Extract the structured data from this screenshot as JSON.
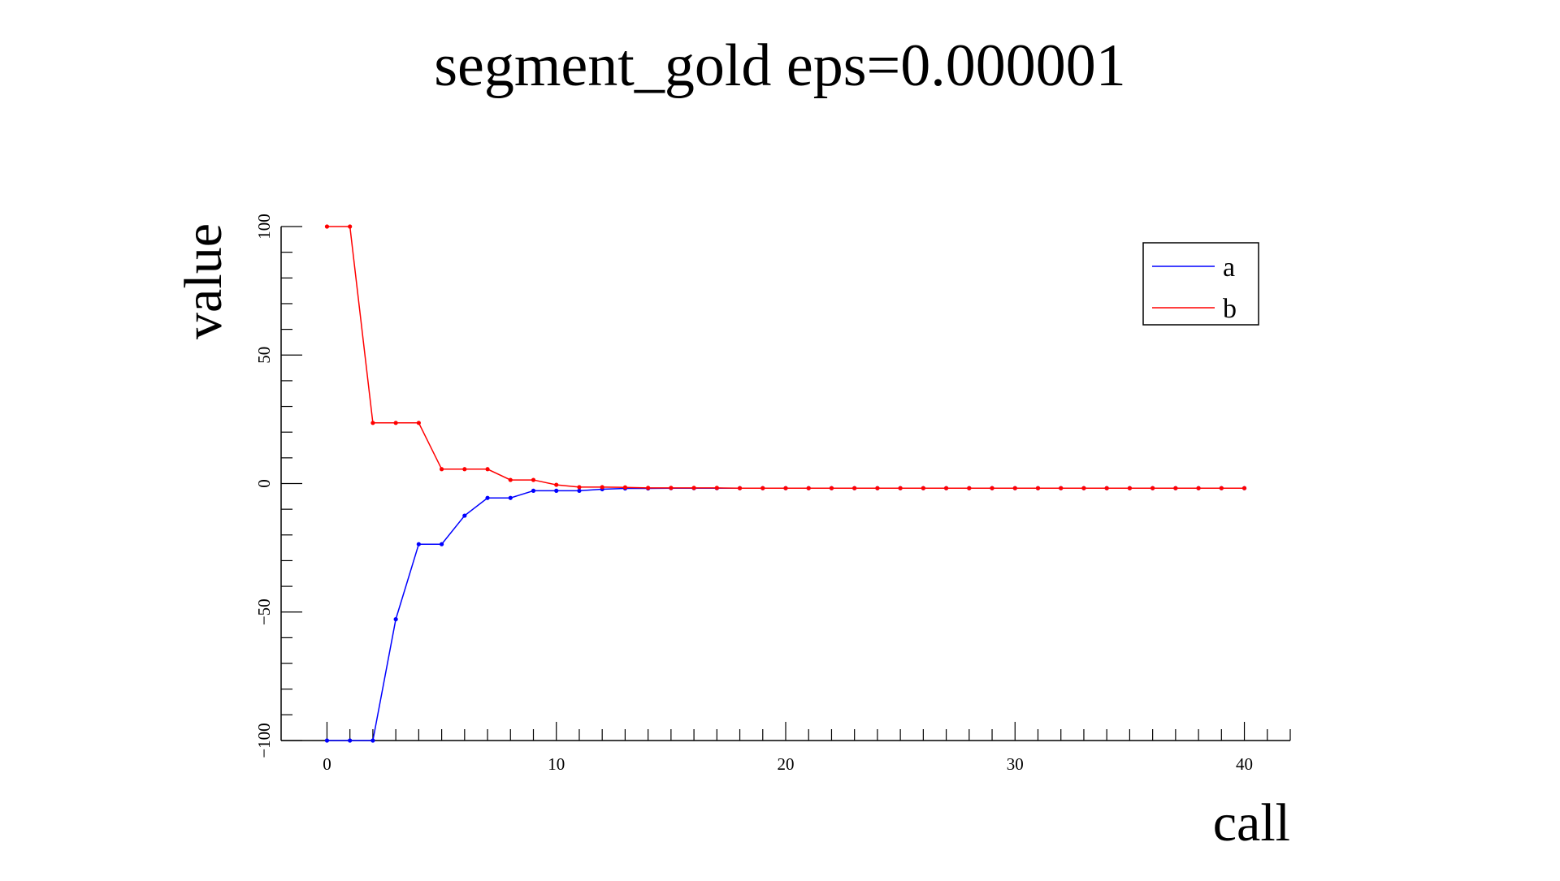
{
  "chart_data": {
    "type": "line",
    "title": "segment_gold eps=0.000001",
    "xlabel": "call",
    "ylabel": "value",
    "xlim": [
      -2,
      42
    ],
    "ylim": [
      -100,
      100
    ],
    "grid": false,
    "legend": {
      "position": "top-right",
      "entries": [
        "a",
        "b"
      ]
    },
    "x_ticks": [
      "0",
      "10",
      "20",
      "30",
      "40"
    ],
    "y_ticks": [
      "−100",
      "−50",
      "0",
      "50",
      "100"
    ],
    "y_tick_values": [
      -100,
      -50,
      0,
      50,
      100
    ],
    "x": [
      0,
      1,
      2,
      3,
      4,
      5,
      6,
      7,
      8,
      9,
      10,
      11,
      12,
      13,
      14,
      15,
      16,
      17,
      18,
      19,
      20,
      21,
      22,
      23,
      24,
      25,
      26,
      27,
      28,
      29,
      30,
      31,
      32,
      33,
      34,
      35,
      36,
      37,
      38,
      39,
      40
    ],
    "series": [
      {
        "name": "a",
        "color": "#0000ff",
        "values": [
          -100,
          -100,
          -100,
          -52.8,
          -23.6,
          -23.6,
          -12.5,
          -5.6,
          -5.6,
          -2.8,
          -2.8,
          -2.8,
          -2.2,
          -1.9,
          -1.9,
          -1.8,
          -1.8,
          -1.8,
          -1.8,
          -1.8,
          -1.8,
          -1.8,
          -1.8,
          -1.8,
          -1.8,
          -1.8,
          -1.8,
          -1.8,
          -1.8,
          -1.8,
          -1.8,
          -1.8,
          -1.8,
          -1.8,
          -1.8,
          -1.8,
          -1.8,
          -1.8,
          -1.8,
          -1.8,
          -1.8
        ]
      },
      {
        "name": "b",
        "color": "#ff0000",
        "values": [
          100,
          100,
          23.6,
          23.6,
          23.6,
          5.6,
          5.6,
          5.6,
          1.4,
          1.4,
          -0.5,
          -1.4,
          -1.4,
          -1.5,
          -1.7,
          -1.7,
          -1.7,
          -1.7,
          -1.8,
          -1.8,
          -1.8,
          -1.8,
          -1.8,
          -1.8,
          -1.8,
          -1.8,
          -1.8,
          -1.8,
          -1.8,
          -1.8,
          -1.8,
          -1.8,
          -1.8,
          -1.8,
          -1.8,
          -1.8,
          -1.8,
          -1.8,
          -1.8,
          -1.8,
          -1.8
        ]
      }
    ]
  }
}
